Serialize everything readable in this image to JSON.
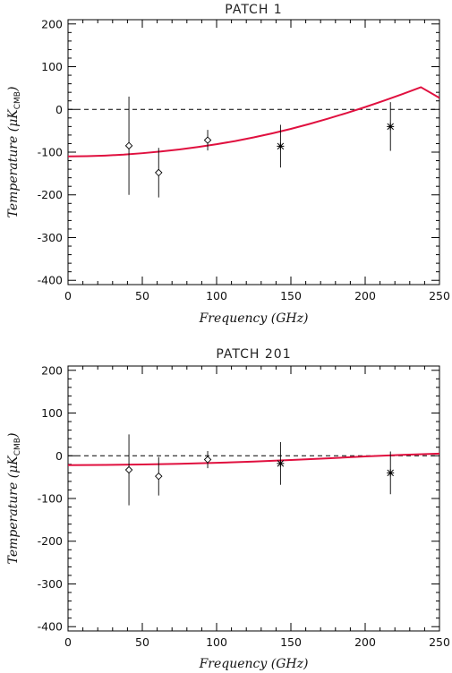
{
  "chart_data": [
    {
      "type": "scatter",
      "title": "PATCH   1",
      "xlabel": "Frequency (GHz)",
      "ylabel": {
        "main": "Temperature (μK",
        "sub": "CMB",
        "close": ")"
      },
      "xlim": [
        0,
        250
      ],
      "ylim": [
        -410,
        210
      ],
      "xticks": [
        0,
        50,
        100,
        150,
        200,
        250
      ],
      "yticks": [
        -400,
        -300,
        -200,
        -100,
        0,
        100,
        200
      ],
      "reference_line": {
        "y": 0,
        "style": "dashed"
      },
      "model_curve": {
        "color": "#e0103f",
        "x": [
          0,
          12.5,
          25,
          37.5,
          50,
          62.5,
          75,
          87.5,
          100,
          112.5,
          125,
          137.5,
          150,
          162.5,
          175,
          187.5,
          200,
          212.5,
          225,
          237.5,
          250
        ],
        "y": [
          -110,
          -109.4,
          -108,
          -105.8,
          -102.5,
          -98.5,
          -93.8,
          -88,
          -81.5,
          -74,
          -65.5,
          -56,
          -45.5,
          -34,
          -21.6,
          -8.4,
          5.5,
          20.2,
          35.7,
          52,
          27
        ]
      },
      "points": [
        {
          "x": 41,
          "y": -85,
          "err": 115,
          "marker": "diamond"
        },
        {
          "x": 61,
          "y": -148,
          "err": 58,
          "marker": "diamond"
        },
        {
          "x": 94,
          "y": -72,
          "err": 24,
          "marker": "diamond"
        },
        {
          "x": 143,
          "y": -86,
          "err": 50,
          "marker": "asterisk"
        },
        {
          "x": 217,
          "y": -40,
          "err": 57,
          "marker": "asterisk"
        }
      ]
    },
    {
      "type": "scatter",
      "title": "PATCH  201",
      "xlabel": "Frequency (GHz)",
      "ylabel": {
        "main": "Temperature (μK",
        "sub": "CMB",
        "close": ")"
      },
      "xlim": [
        0,
        250
      ],
      "ylim": [
        -410,
        210
      ],
      "xticks": [
        0,
        50,
        100,
        150,
        200,
        250
      ],
      "yticks": [
        -400,
        -300,
        -200,
        -100,
        0,
        100,
        200
      ],
      "reference_line": {
        "y": 0,
        "style": "dashed"
      },
      "model_curve": {
        "color": "#e0103f",
        "x": [
          0,
          25,
          50,
          75,
          100,
          125,
          150,
          175,
          200,
          225,
          250
        ],
        "y": [
          -22,
          -21.5,
          -20.5,
          -18.8,
          -16.5,
          -13.5,
          -10,
          -6,
          -1.5,
          2,
          5
        ]
      },
      "points": [
        {
          "x": 41,
          "y": -33,
          "err": 83,
          "marker": "diamond"
        },
        {
          "x": 61,
          "y": -48,
          "err": 45,
          "marker": "diamond"
        },
        {
          "x": 94,
          "y": -9,
          "err": 20,
          "marker": "diamond"
        },
        {
          "x": 143,
          "y": -18,
          "err": 50,
          "marker": "asterisk"
        },
        {
          "x": 217,
          "y": -40,
          "err": 50,
          "marker": "asterisk"
        }
      ]
    }
  ]
}
